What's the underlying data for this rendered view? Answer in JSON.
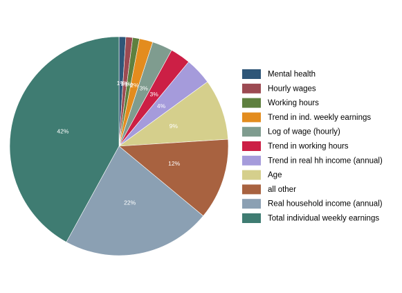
{
  "chart_data": {
    "type": "pie",
    "start": "12 o'clock",
    "direction": "clockwise",
    "legend_position": "right",
    "slices": [
      {
        "label": "Mental health",
        "value": 1,
        "display": "1%",
        "color": "#2e5678"
      },
      {
        "label": "Hourly wages",
        "value": 1,
        "display": "1%",
        "color": "#9c4a52"
      },
      {
        "label": "Working hours",
        "value": 1,
        "display": "1%",
        "color": "#5e803f"
      },
      {
        "label": "Trend in ind. weekly earnings",
        "value": 2,
        "display": "2%",
        "color": "#e38c1e"
      },
      {
        "label": "Log of wage (hourly)",
        "value": 3,
        "display": "3%",
        "color": "#7f9c8f"
      },
      {
        "label": "Trend in working hours",
        "value": 3,
        "display": "3%",
        "color": "#cc1f45"
      },
      {
        "label": "Trend in real hh income (annual)",
        "value": 4,
        "display": "4%",
        "color": "#a59bdb"
      },
      {
        "label": "Age",
        "value": 9,
        "display": "9%",
        "color": "#d5cf8c"
      },
      {
        "label": "all other",
        "value": 12,
        "display": "12%",
        "color": "#a86240"
      },
      {
        "label": "Real household income (annual)",
        "value": 22,
        "display": "22%",
        "color": "#8ba0b3"
      },
      {
        "label": "Total individual weekly earnings",
        "value": 42,
        "display": "42%",
        "color": "#3f7c72"
      }
    ]
  }
}
